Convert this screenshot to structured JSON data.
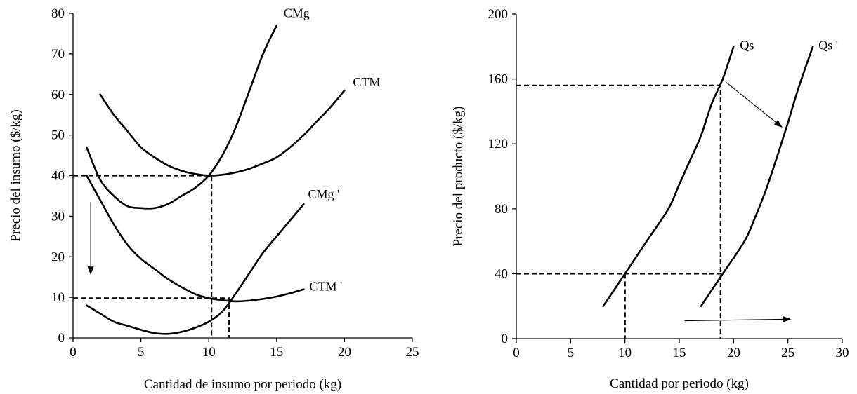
{
  "chart_data": [
    {
      "type": "line",
      "xlabel": "Cantidad de insumo por periodo (kg)",
      "ylabel": "Precio del insumo ($/kg)",
      "xlim": [
        0,
        25
      ],
      "ylim": [
        0,
        80
      ],
      "xticks": [
        0,
        5,
        10,
        15,
        20,
        25
      ],
      "yticks": [
        0,
        10,
        20,
        30,
        40,
        50,
        60,
        70,
        80
      ],
      "grid": false,
      "series": [
        {
          "name": "CMg",
          "x": [
            1,
            2,
            3,
            4,
            5,
            6,
            7,
            8,
            9,
            10,
            11,
            12,
            13,
            14,
            15
          ],
          "y": [
            47,
            39,
            35,
            32.5,
            32,
            32,
            33,
            35,
            37,
            40,
            45,
            52,
            61,
            70,
            77
          ]
        },
        {
          "name": "CTM",
          "x": [
            2,
            3,
            4,
            5,
            6,
            7,
            8,
            9,
            10,
            11,
            12,
            13,
            14,
            15,
            16,
            17,
            18,
            19,
            20
          ],
          "y": [
            60,
            55,
            51,
            47,
            44.5,
            42.5,
            41.2,
            40.4,
            40,
            40.2,
            40.8,
            41.7,
            43,
            44.5,
            47,
            50,
            53.5,
            57,
            61
          ]
        },
        {
          "name": "CMg '",
          "x": [
            1,
            2,
            3,
            4,
            5,
            6,
            7,
            8,
            9,
            10,
            11,
            12,
            13,
            14,
            15,
            16,
            17
          ],
          "y": [
            8,
            6,
            4,
            3,
            2,
            1.2,
            1,
            1.5,
            2.5,
            4,
            6.5,
            11,
            16,
            21,
            25,
            29,
            33
          ]
        },
        {
          "name": "CTM '",
          "x": [
            1,
            2,
            3,
            4,
            5,
            6,
            7,
            8,
            9,
            10,
            11,
            12,
            13,
            14,
            15,
            16,
            17
          ],
          "y": [
            40,
            34,
            28,
            23,
            19.5,
            17,
            14.5,
            12.5,
            10.8,
            9.8,
            9.3,
            9,
            9.2,
            9.6,
            10.2,
            11,
            12
          ]
        }
      ],
      "guides": [
        {
          "points": [
            [
              0,
              40
            ],
            [
              10.2,
              40
            ],
            [
              10.2,
              0
            ]
          ]
        },
        {
          "points": [
            [
              0,
              9.8
            ],
            [
              11.5,
              9.8
            ],
            [
              11.5,
              0
            ]
          ]
        }
      ],
      "arrows": [
        {
          "from": [
            1.3,
            33.5
          ],
          "to": [
            1.3,
            15.5
          ]
        }
      ]
    },
    {
      "type": "line",
      "xlabel": "Cantidad por periodo (kg)",
      "ylabel": "Precio del producto ($/kg)",
      "xlim": [
        0,
        30
      ],
      "ylim": [
        0,
        200
      ],
      "xticks": [
        0,
        5,
        10,
        15,
        20,
        25,
        30
      ],
      "yticks": [
        0,
        40,
        80,
        120,
        160,
        200
      ],
      "grid": false,
      "series": [
        {
          "name": "Qs",
          "x": [
            8,
            10,
            12,
            14,
            15,
            16,
            17,
            18,
            19,
            20
          ],
          "y": [
            20,
            40,
            60,
            80,
            95,
            110,
            125,
            145,
            160,
            180
          ]
        },
        {
          "name": "Qs '",
          "x": [
            17,
            19,
            21,
            22,
            23,
            24,
            25,
            26,
            27.3
          ],
          "y": [
            20,
            40,
            60,
            75,
            92,
            112,
            133,
            155,
            180
          ]
        }
      ],
      "guides": [
        {
          "points": [
            [
              0,
              156
            ],
            [
              18.8,
              156
            ],
            [
              18.8,
              0
            ]
          ]
        },
        {
          "points": [
            [
              0,
              40
            ],
            [
              18.8,
              40
            ]
          ]
        },
        {
          "points": [
            [
              10,
              40
            ],
            [
              10,
              0
            ]
          ]
        }
      ],
      "arrows": [
        {
          "from": [
            19.3,
            158
          ],
          "to": [
            24.5,
            130
          ]
        },
        {
          "from": [
            15.5,
            11
          ],
          "to": [
            25.3,
            12
          ]
        }
      ]
    }
  ]
}
